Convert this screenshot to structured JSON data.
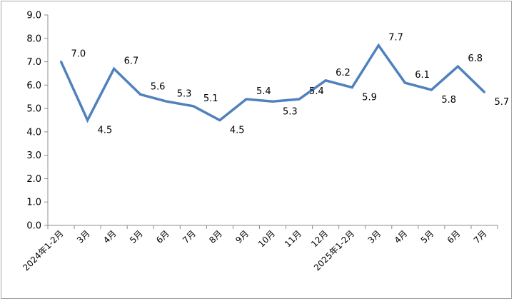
{
  "chart_data": {
    "type": "line",
    "categories": [
      "2024年1-2月",
      "3月",
      "4月",
      "5月",
      "6月",
      "7月",
      "8月",
      "9月",
      "10月",
      "11月",
      "12月",
      "2025年1-2月",
      "3月",
      "4月",
      "5月",
      "6月",
      "7月"
    ],
    "series": [
      {
        "values": [
          7.0,
          4.5,
          6.7,
          5.6,
          5.3,
          5.1,
          4.5,
          5.4,
          5.3,
          5.4,
          6.2,
          5.9,
          7.7,
          6.1,
          5.8,
          6.8,
          5.7
        ]
      }
    ],
    "data_labels": [
      "7.0",
      "4.5",
      "6.7",
      "5.6",
      "5.3",
      "5.1",
      "4.5",
      "5.4",
      "5.3",
      "5.4",
      "6.2",
      "5.9",
      "7.7",
      "6.1",
      "5.8",
      "6.8",
      "5.7"
    ],
    "y_ticks": [
      "0.0",
      "1.0",
      "2.0",
      "3.0",
      "4.0",
      "5.0",
      "6.0",
      "7.0",
      "8.0",
      "9.0"
    ],
    "ylim": [
      0,
      9
    ],
    "grid": false,
    "line_color": "#4f81bd",
    "axis_color": "#8c8c8c"
  }
}
